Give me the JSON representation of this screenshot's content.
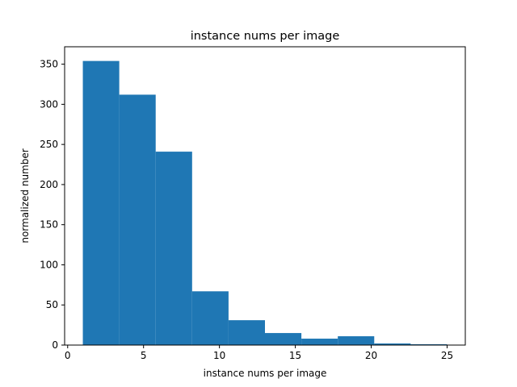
{
  "chart_data": {
    "type": "bar",
    "title": "instance nums per image",
    "xlabel": "instance nums per image",
    "ylabel": "normalized number",
    "bins": [
      {
        "start": 1.0,
        "end": 3.4,
        "value": 354
      },
      {
        "start": 3.4,
        "end": 5.8,
        "value": 312
      },
      {
        "start": 5.8,
        "end": 8.2,
        "value": 241
      },
      {
        "start": 8.2,
        "end": 10.6,
        "value": 67
      },
      {
        "start": 10.6,
        "end": 13.0,
        "value": 31
      },
      {
        "start": 13.0,
        "end": 15.4,
        "value": 15
      },
      {
        "start": 15.4,
        "end": 17.8,
        "value": 8
      },
      {
        "start": 17.8,
        "end": 20.2,
        "value": 11
      },
      {
        "start": 20.2,
        "end": 22.6,
        "value": 2
      },
      {
        "start": 22.6,
        "end": 25.0,
        "value": 1
      }
    ],
    "xlim": [
      -0.2,
      26.2
    ],
    "ylim": [
      0,
      371.7
    ],
    "xticks": [
      0,
      5,
      10,
      15,
      20,
      25
    ],
    "yticks": [
      0,
      50,
      100,
      150,
      200,
      250,
      300,
      350
    ],
    "bar_color": "#1f77b4",
    "grid": false,
    "legend": "none"
  }
}
